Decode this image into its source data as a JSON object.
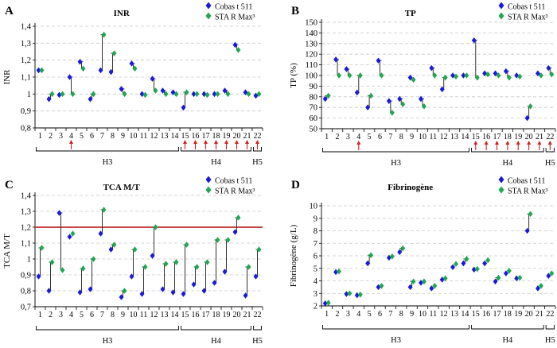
{
  "colors": {
    "cobas": "#1a1adb",
    "sta": "#1fa84f",
    "errorbar": "#333333",
    "arrow": "#d42020",
    "refline": "#c0282a",
    "grid": "#c8c8c8"
  },
  "chart_data": [
    {
      "panel": "A",
      "type": "scatter",
      "title": "INR",
      "ylabel": "INR",
      "ylim": [
        0.8,
        1.4
      ],
      "yticks": [
        "0,8",
        "0,9",
        "1",
        "1,1",
        "1,2",
        "1,3",
        "1,4"
      ],
      "grid": true,
      "legend": [
        "Cobas t 511",
        "STA R Max³"
      ],
      "legend_position": "top-right",
      "x": [
        "1",
        "2",
        "3",
        "4",
        "5",
        "6",
        "7",
        "8",
        "9",
        "10",
        "11",
        "12",
        "13",
        "14",
        "15",
        "16",
        "17",
        "18",
        "19",
        "20",
        "21",
        "22"
      ],
      "series": [
        {
          "name": "Cobas t 511",
          "values": [
            1.14,
            0.97,
            0.995,
            1.1,
            1.19,
            0.97,
            1.14,
            1.13,
            1.03,
            1.18,
            1.0,
            1.09,
            1.02,
            1.01,
            0.92,
            1.0,
            1.0,
            1.0,
            1.02,
            1.29,
            1.01,
            0.99
          ]
        },
        {
          "name": "STA R Max³",
          "values": [
            1.14,
            1.0,
            1.0,
            1.0,
            1.15,
            1.0,
            1.35,
            1.24,
            1.0,
            1.15,
            0.995,
            1.02,
            1.0,
            1.0,
            1.01,
            1.0,
            0.995,
            1.0,
            1.0,
            1.26,
            1.0,
            1.0
          ]
        }
      ],
      "markers": [
        4,
        15,
        16,
        17,
        18,
        19,
        20,
        21,
        22
      ],
      "groups": [
        {
          "label": "H3",
          "from": 1,
          "to": 14
        },
        {
          "label": "H4",
          "from": 15,
          "to": 21
        },
        {
          "label": "H5",
          "from": 22,
          "to": 22
        }
      ]
    },
    {
      "panel": "B",
      "type": "scatter",
      "title": "TP",
      "ylabel": "TP (%)",
      "ylim": [
        50,
        150
      ],
      "yticks": [
        "50",
        "60",
        "70",
        "80",
        "90",
        "100",
        "110",
        "120",
        "130",
        "140",
        "150"
      ],
      "grid": true,
      "legend": [
        "Cobas t 511",
        "STA R Max³"
      ],
      "legend_position": "top-right",
      "x": [
        "1",
        "2",
        "3",
        "4",
        "5",
        "6",
        "7",
        "8",
        "9",
        "10",
        "11",
        "12",
        "13",
        "14",
        "15",
        "16",
        "17",
        "18",
        "19",
        "20",
        "21",
        "22"
      ],
      "series": [
        {
          "name": "Cobas t 511",
          "values": [
            78,
            115,
            106,
            84,
            70,
            114,
            76,
            78,
            98,
            78,
            107,
            87,
            100,
            100,
            133,
            102,
            102,
            104,
            100,
            60,
            102,
            107
          ]
        },
        {
          "name": "STA R Max³",
          "values": [
            81,
            100,
            100,
            100,
            81,
            100,
            65,
            73,
            96,
            71,
            100,
            98,
            99,
            100,
            98,
            101,
            100,
            98,
            99,
            71,
            100,
            101
          ]
        }
      ],
      "markers": [
        4,
        15,
        16,
        17,
        18,
        19,
        20,
        21,
        22
      ],
      "groups": [
        {
          "label": "H3",
          "from": 1,
          "to": 14
        },
        {
          "label": "H4",
          "from": 15,
          "to": 21
        },
        {
          "label": "H5",
          "from": 22,
          "to": 22
        }
      ]
    },
    {
      "panel": "C",
      "type": "scatter",
      "title": "TCA M/T",
      "ylabel": "TCA M/T",
      "ylim": [
        0.7,
        1.4
      ],
      "yticks": [
        "0,7",
        "0,8",
        "0,9",
        "1",
        "1,1",
        "1,2",
        "1,3",
        "1,4"
      ],
      "grid": true,
      "refline": 1.2,
      "legend": [
        "Cobas t 511",
        "STA R Max³"
      ],
      "legend_position": "top-right",
      "x": [
        "1",
        "2",
        "3",
        "4",
        "5",
        "6",
        "7",
        "8",
        "9",
        "10",
        "11",
        "12",
        "13",
        "14",
        "15",
        "16",
        "17",
        "18",
        "19",
        "20",
        "21",
        "22"
      ],
      "series": [
        {
          "name": "Cobas t 511",
          "values": [
            0.89,
            0.8,
            1.29,
            1.14,
            0.79,
            0.81,
            1.16,
            1.06,
            0.76,
            0.89,
            0.78,
            1.02,
            0.81,
            0.79,
            0.78,
            0.84,
            0.8,
            0.85,
            0.92,
            1.17,
            0.77,
            0.89
          ]
        },
        {
          "name": "STA R Max³",
          "values": [
            1.07,
            0.98,
            0.93,
            1.16,
            0.94,
            1.0,
            1.31,
            1.09,
            0.8,
            1.06,
            0.95,
            1.2,
            0.97,
            0.98,
            1.09,
            0.95,
            0.98,
            1.12,
            1.12,
            1.26,
            0.95,
            1.06
          ]
        }
      ],
      "markers": [],
      "groups": [
        {
          "label": "H3",
          "from": 1,
          "to": 14
        },
        {
          "label": "H4",
          "from": 15,
          "to": 21
        },
        {
          "label": "H5",
          "from": 22,
          "to": 22
        }
      ]
    },
    {
      "panel": "D",
      "type": "scatter",
      "title": "Fibrinogène",
      "ylabel": "Fibrinogène (g/L)",
      "ylim": [
        2,
        10
      ],
      "yticks": [
        "2",
        "3",
        "4",
        "5",
        "6",
        "7",
        "8",
        "9",
        "10"
      ],
      "grid": true,
      "legend": [
        "Cobas t 511",
        "STA R Max³"
      ],
      "legend_position": "top-right",
      "x": [
        "1",
        "2",
        "3",
        "4",
        "5",
        "6",
        "7",
        "8",
        "9",
        "10",
        "11",
        "12",
        "13",
        "14",
        "15",
        "16",
        "17",
        "18",
        "19",
        "20",
        "21",
        "22"
      ],
      "series": [
        {
          "name": "Cobas t 511",
          "values": [
            2.2,
            4.7,
            2.95,
            2.85,
            5.4,
            3.5,
            5.85,
            6.3,
            3.5,
            3.85,
            3.4,
            4.1,
            5.1,
            5.4,
            4.9,
            5.4,
            3.95,
            4.6,
            4.2,
            8.0,
            3.4,
            4.4
          ]
        },
        {
          "name": "STA R Max³",
          "values": [
            2.25,
            4.75,
            3.0,
            2.9,
            6.05,
            3.6,
            5.95,
            6.6,
            3.95,
            3.95,
            3.6,
            4.2,
            5.35,
            5.75,
            4.95,
            5.65,
            4.25,
            4.8,
            4.25,
            9.35,
            3.6,
            4.6
          ]
        }
      ],
      "markers": [],
      "groups": [
        {
          "label": "H3",
          "from": 1,
          "to": 14
        },
        {
          "label": "H4",
          "from": 15,
          "to": 21
        },
        {
          "label": "H5",
          "from": 22,
          "to": 22
        }
      ]
    }
  ]
}
